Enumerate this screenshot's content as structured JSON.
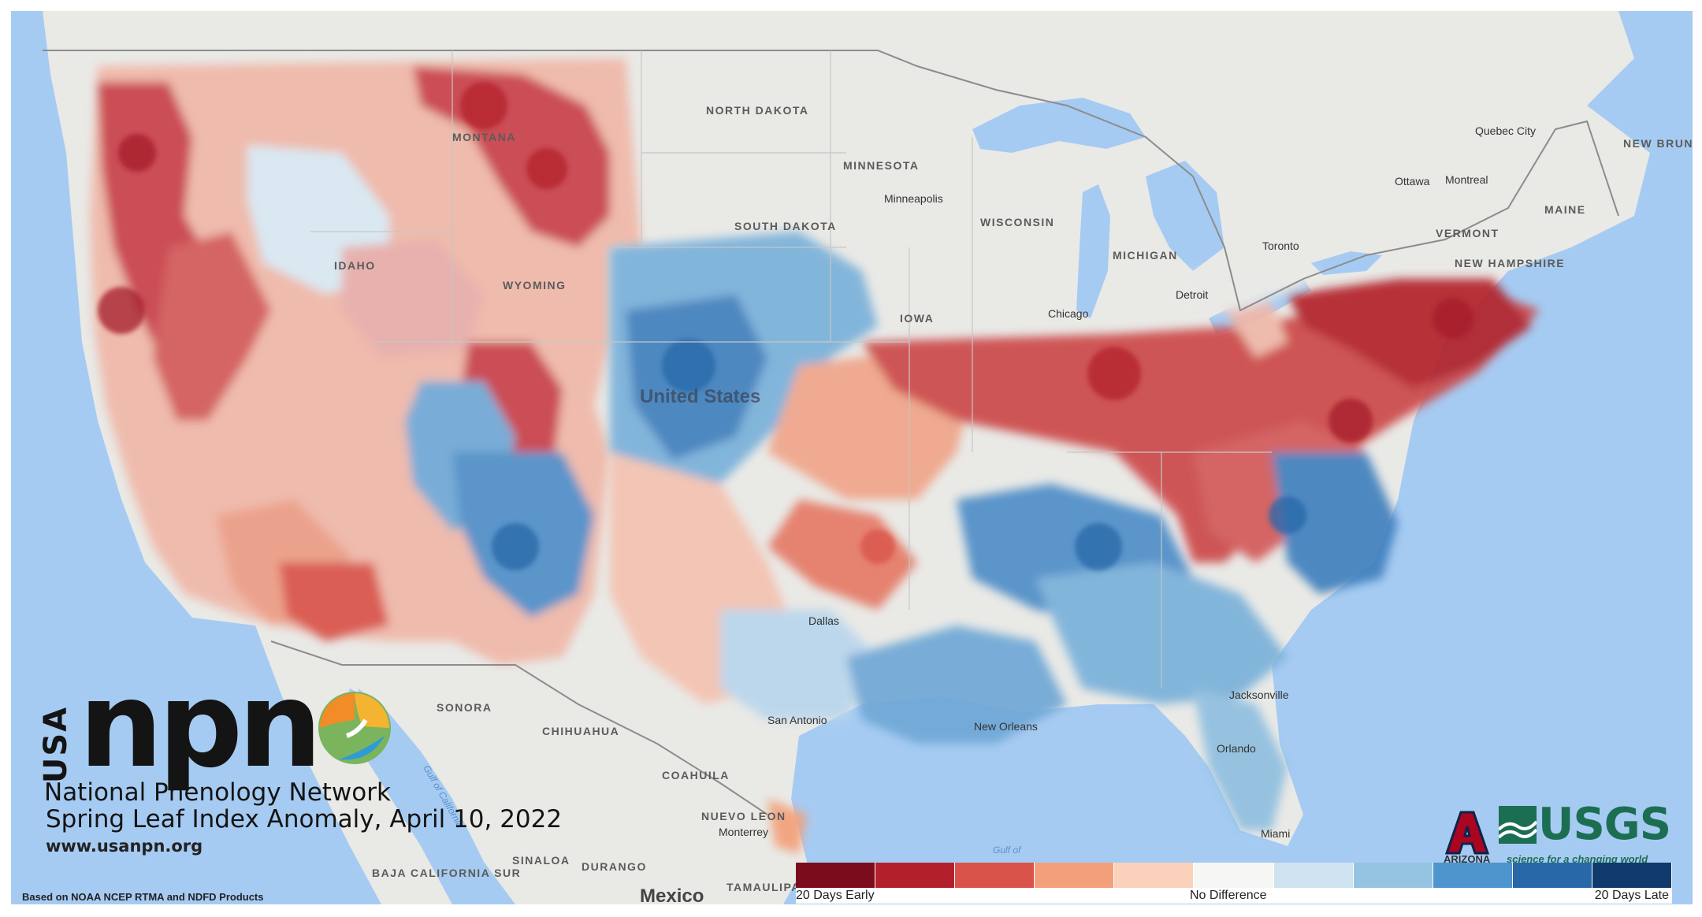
{
  "map": {
    "country_label": "United States",
    "mexico_label": "Mexico",
    "states": [
      "NORTH DAKOTA",
      "SOUTH DAKOTA",
      "MINNESOTA",
      "WISCONSIN",
      "MICHIGAN",
      "IOWA",
      "WYOMING",
      "IDAHO",
      "MONTANA",
      "MAINE",
      "VERMONT",
      "NEW HAMPSHIRE",
      "NEW BRUNSWICK",
      "SONORA",
      "CHIHUAHUA",
      "COAHUILA",
      "NUEVO LEON",
      "SINALOA",
      "DURANGO",
      "BAJA CALIFORNIA SUR",
      "TAMAULIPAS"
    ],
    "cities": [
      "Minneapolis",
      "Chicago",
      "Detroit",
      "Toronto",
      "Ottawa",
      "Montreal",
      "Quebec City",
      "Jacksonville",
      "Orlando",
      "Miami",
      "Dallas",
      "San Antonio",
      "New Orleans",
      "Monterrey"
    ],
    "water": [
      "Gulf of",
      "Gulf of California"
    ]
  },
  "logo": {
    "npn": "npn",
    "usa": "USA",
    "network_name": "National Phenology Network",
    "title": "Spring Leaf Index Anomaly, April 10, 2022",
    "website": "www.usanpn.org"
  },
  "source_note": "Based on NOAA NCEP RTMA and NDFD Products",
  "legend": {
    "colors": [
      "#7a0c1c",
      "#b3202c",
      "#d9534a",
      "#f3a07a",
      "#fad2bc",
      "#f6f6f4",
      "#cfe2f0",
      "#95c4e2",
      "#4f95cd",
      "#2868a8",
      "#103a6e"
    ],
    "left_label": "20 Days Early",
    "center_label": "No Difference",
    "right_label": "20 Days Late"
  },
  "partners": {
    "arizona": "ARIZONA",
    "usgs": "USGS",
    "usgs_tagline": "science for a changing world"
  }
}
